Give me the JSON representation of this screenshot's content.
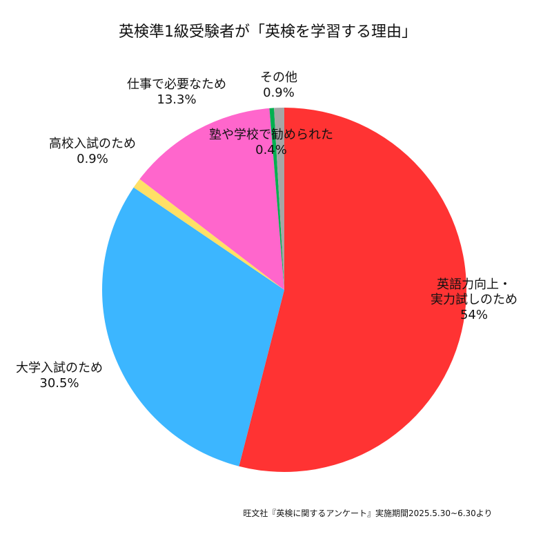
{
  "chart_data": {
    "type": "pie",
    "title": "英検準1級受験者が「英検を学習する理由」",
    "source_note": "旺文社『英検に関するアンケート』実施期間2025.5.30~6.30より",
    "unit": "%",
    "direction": "clockwise",
    "start": "top",
    "slices": [
      {
        "label_lines": [
          "英語力向上・",
          "実力試しのため"
        ],
        "value": 54,
        "value_label": "54%",
        "color": "#ff3333"
      },
      {
        "label_lines": [
          "大学入試のため"
        ],
        "value": 30.5,
        "value_label": "30.5%",
        "color": "#3cb6ff"
      },
      {
        "label_lines": [
          "高校入試のため"
        ],
        "value": 0.9,
        "value_label": "0.9%",
        "color": "#ffe066"
      },
      {
        "label_lines": [
          "仕事で必要なため"
        ],
        "value": 13.3,
        "value_label": "13.3%",
        "color": "#ff66cc"
      },
      {
        "label_lines": [
          "塾や学校で勧められた"
        ],
        "value": 0.4,
        "value_label": "0.4%",
        "color": "#00b050"
      },
      {
        "label_lines": [
          "その他"
        ],
        "value": 0.9,
        "value_label": "0.9%",
        "color": "#a6a6a6"
      }
    ]
  }
}
